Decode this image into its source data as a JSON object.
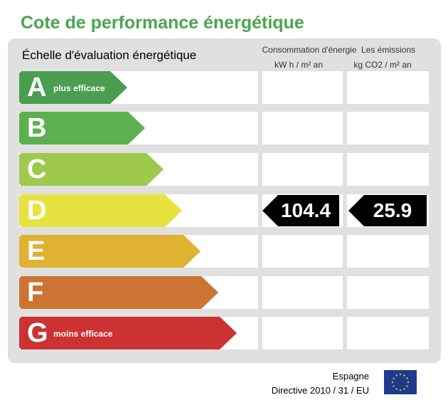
{
  "title": "Cote de performance énergétique",
  "scale_title": "Échelle d'évaluation énergétique",
  "columns": {
    "consumption": {
      "line1": "Consommation d'énergie",
      "line2": "kW h / m² an"
    },
    "emissions": {
      "line1": "Les émissions",
      "line2": "kg CO2 / m² an"
    }
  },
  "ratings": [
    {
      "letter": "A",
      "sublabel": "plus efficace",
      "color": "#4a9e4f"
    },
    {
      "letter": "B",
      "sublabel": "",
      "color": "#5cb04f"
    },
    {
      "letter": "C",
      "sublabel": "",
      "color": "#9ec94d"
    },
    {
      "letter": "D",
      "sublabel": "",
      "color": "#e6e340"
    },
    {
      "letter": "E",
      "sublabel": "",
      "color": "#e0b232"
    },
    {
      "letter": "F",
      "sublabel": "",
      "color": "#cd7433"
    },
    {
      "letter": "G",
      "sublabel": "moins efficace",
      "color": "#cc3232"
    }
  ],
  "current_rating": "D",
  "consumption_value": "104.4",
  "emissions_value": "25.9",
  "footer": {
    "country": "Espagne",
    "directive": "Directive 2010 / 31 / EU"
  },
  "icons": {
    "eu_flag": "eu-flag-icon"
  },
  "colors": {
    "title": "#4aa54c",
    "indicator": "#000000"
  }
}
